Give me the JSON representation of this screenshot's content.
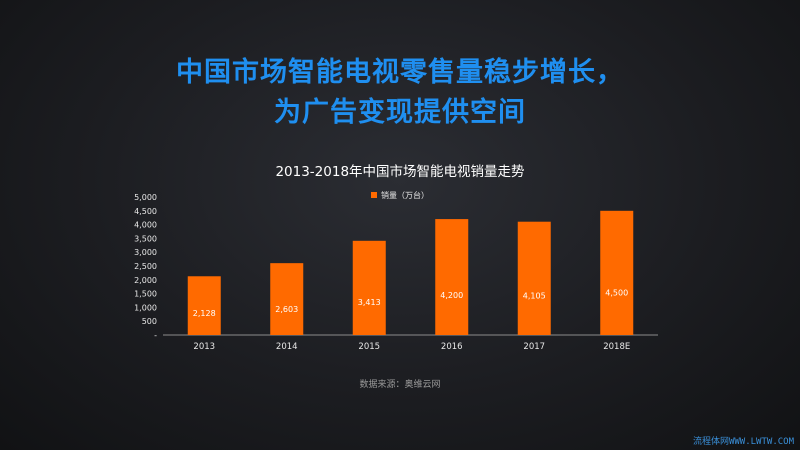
{
  "headline": {
    "line1": "中国市场智能电视零售量稳步增长，",
    "line2": "为广告变现提供空间"
  },
  "chart_data": {
    "type": "bar",
    "title": "2013-2018年中国市场智能电视销量走势",
    "categories": [
      "2013",
      "2014",
      "2015",
      "2016",
      "2017",
      "2018E"
    ],
    "series": [
      {
        "name": "销量（万台）",
        "values": [
          2128,
          2603,
          3413,
          4200,
          4105,
          4500
        ],
        "labels": [
          "2,128",
          "2,603",
          "3,413",
          "4,200",
          "4,105",
          "4,500"
        ]
      }
    ],
    "ylim": [
      0,
      5000
    ],
    "yticks": [
      {
        "value": 0,
        "label": "-"
      },
      {
        "value": 500,
        "label": "500"
      },
      {
        "value": 1000,
        "label": "1,000"
      },
      {
        "value": 1500,
        "label": "1,500"
      },
      {
        "value": 2000,
        "label": "2,000"
      },
      {
        "value": 2500,
        "label": "2,500"
      },
      {
        "value": 3000,
        "label": "3,000"
      },
      {
        "value": 3500,
        "label": "3,500"
      },
      {
        "value": 4000,
        "label": "4,000"
      },
      {
        "value": 4500,
        "label": "4,500"
      },
      {
        "value": 5000,
        "label": "5,000"
      }
    ],
    "legend_position": "top-center",
    "grid": false,
    "bar_color": "#ff6a00"
  },
  "source": "数据来源：奥维云网",
  "watermark": "流程体网WWW.LWTW.COM"
}
